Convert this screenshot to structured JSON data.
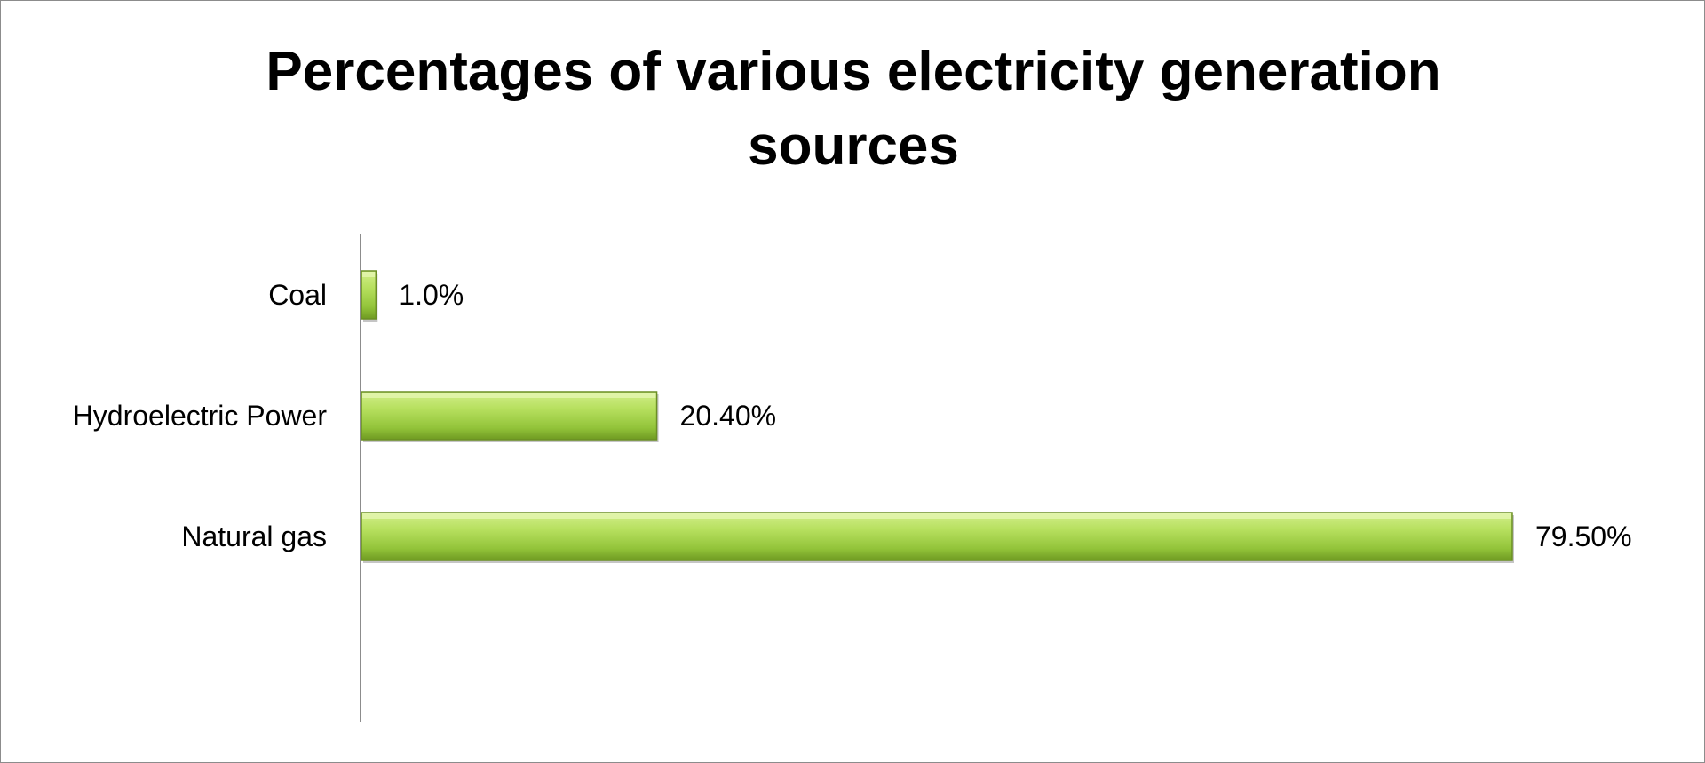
{
  "chart_data": {
    "type": "bar",
    "orientation": "horizontal",
    "title": "Percentages of various electricity generation sources",
    "categories": [
      "Coal",
      "Hydroelectric Power",
      "Natural gas"
    ],
    "values": [
      1.0,
      20.4,
      79.5
    ],
    "value_labels": [
      "1.0%",
      "20.40%",
      "79.50%"
    ],
    "xlim": [
      0,
      100
    ],
    "xlabel": "",
    "ylabel": "",
    "grid": false,
    "legend": "none",
    "bar_color": "#9acd3c"
  }
}
